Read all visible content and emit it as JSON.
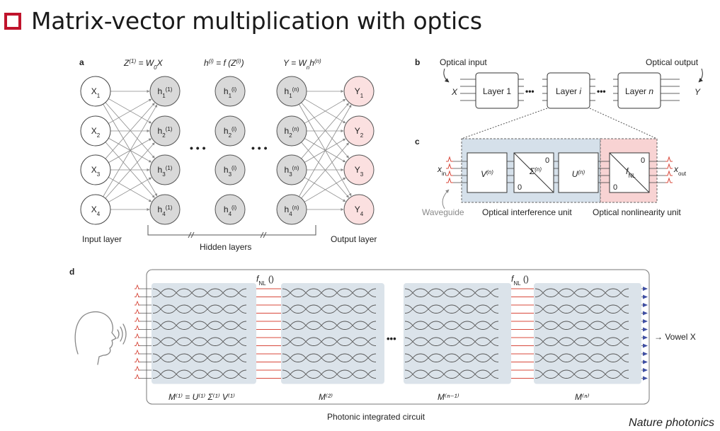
{
  "title": "Matrix-vector multiplication with optics",
  "credit": "Nature photonics",
  "colors": {
    "accent": "#c0142c",
    "hidden_node": "#d9d9d9",
    "output_node": "#fbe0e0",
    "interference_bg": "#d5e0ea",
    "nonlinear_bg": "#f8d3d3",
    "mesh_bg": "#dbe3ea",
    "signal": "#d8483b",
    "output_marker": "#3f4fa3"
  },
  "panel_a": {
    "label": "a",
    "eq1_pre": "Z",
    "eq1_sup": "(1)",
    "eq1_post": " = W",
    "eq1_sub": "0",
    "eq1_end": "X",
    "eq2_pre": "h",
    "eq2_sup": "(i)",
    "eq2_post": " = f (Z",
    "eq2_sup2": "(i)",
    "eq2_end": ")",
    "eq3_pre": "Y = W",
    "eq3_sub": "n",
    "eq3_post": "h",
    "eq3_sup": "(n)",
    "inputs": [
      {
        "base": "X",
        "sub": "1"
      },
      {
        "base": "X",
        "sub": "2"
      },
      {
        "base": "X",
        "sub": "3"
      },
      {
        "base": "X",
        "sub": "4"
      }
    ],
    "hidden1": [
      {
        "base": "h",
        "sub": "1",
        "sup": "(1)"
      },
      {
        "base": "h",
        "sub": "2",
        "sup": "(1)"
      },
      {
        "base": "h",
        "sub": "3",
        "sup": "(1)"
      },
      {
        "base": "h",
        "sub": "4",
        "sup": "(1)"
      }
    ],
    "hiddeni": [
      {
        "base": "h",
        "sub": "1",
        "sup": "(i)"
      },
      {
        "base": "h",
        "sub": "2",
        "sup": "(i)"
      },
      {
        "base": "h",
        "sub": "3",
        "sup": "(i)"
      },
      {
        "base": "h",
        "sub": "4",
        "sup": "(i)"
      }
    ],
    "hiddenn": [
      {
        "base": "h",
        "sub": "1",
        "sup": "(n)"
      },
      {
        "base": "h",
        "sub": "2",
        "sup": "(n)"
      },
      {
        "base": "h",
        "sub": "3",
        "sup": "(n)"
      },
      {
        "base": "h",
        "sub": "4",
        "sup": "(n)"
      }
    ],
    "outputs": [
      {
        "base": "Y",
        "sub": "1"
      },
      {
        "base": "Y",
        "sub": "2"
      },
      {
        "base": "Y",
        "sub": "3"
      },
      {
        "base": "Y",
        "sub": "4"
      }
    ],
    "ellipsis": "• • •",
    "input_layer": "Input layer",
    "hidden_layers": "Hidden layers",
    "output_layer": "Output layer"
  },
  "panel_b": {
    "label": "b",
    "optical_input": "Optical input",
    "optical_output": "Optical output",
    "x": "X",
    "y": "Y",
    "layer1": "Layer 1",
    "layeri_pre": "Layer ",
    "layeri_var": "i",
    "layern_pre": "Layer ",
    "layern_var": "n",
    "dots": "•••"
  },
  "panel_c": {
    "label": "c",
    "xin": "x",
    "xin_sub": "in",
    "xout": "x",
    "xout_sub": "out",
    "v_base": "V",
    "v_sup": "(n)",
    "sigma_base": "Σ",
    "sigma_sup": "(n)",
    "u_base": "U",
    "u_sup": "(n)",
    "fnl_base": "f",
    "fnl_sub": "NL",
    "zero": "0",
    "waveguide": "Waveguide",
    "interference_unit": "Optical interference unit",
    "nonlinearity_unit": "Optical nonlinearity unit"
  },
  "panel_d": {
    "label": "d",
    "fnl1_base": "f",
    "fnl1_sub": "NL",
    "fnl1_paren": " ()",
    "fnl2_base": "f",
    "fnl2_sub": "NL",
    "fnl2_paren": " ()",
    "m1_label": "M⁽¹⁾ = U⁽¹⁾ Σ⁽¹⁾ V⁽¹⁾",
    "m2_label": "M⁽²⁾",
    "mn1_label": "M⁽ⁿ⁻¹⁾",
    "mn_label": "M⁽ⁿ⁾",
    "ellipsis": "•••",
    "vowel": "→ Vowel X",
    "pic_label": "Photonic integrated circuit",
    "channels": 12
  }
}
